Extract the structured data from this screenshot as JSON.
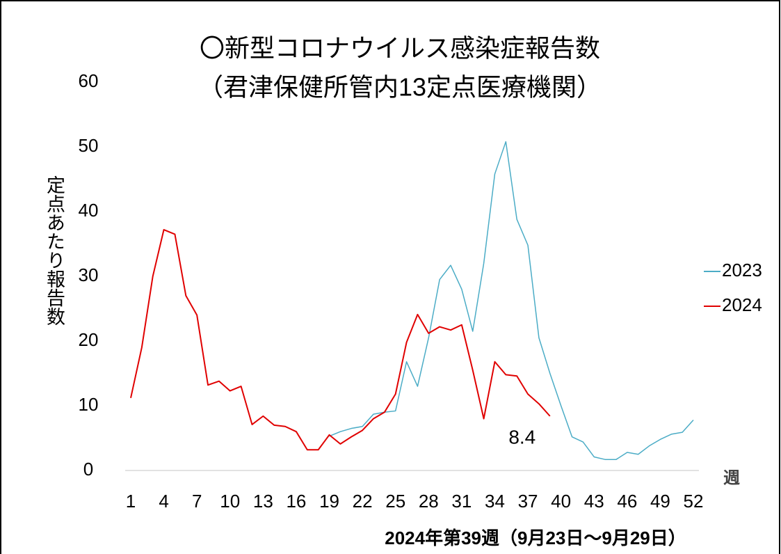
{
  "chart_data": {
    "type": "line",
    "title": "〇新型コロナウイルス感染症報告数",
    "subtitle": "（君津保健所管内13定点医療機関）",
    "ylabel": "定点あたり報告数",
    "xlabel": "週",
    "footer": "2024年第39週（9月23日～9月29日）",
    "x": [
      1,
      2,
      3,
      4,
      5,
      6,
      7,
      8,
      9,
      10,
      11,
      12,
      13,
      14,
      15,
      16,
      17,
      18,
      19,
      20,
      21,
      22,
      23,
      24,
      25,
      26,
      27,
      28,
      29,
      30,
      31,
      32,
      33,
      34,
      35,
      36,
      37,
      38,
      39,
      40,
      41,
      42,
      43,
      44,
      45,
      46,
      47,
      48,
      49,
      50,
      51,
      52
    ],
    "xlim": [
      1,
      52
    ],
    "xticks": [
      1,
      4,
      7,
      10,
      13,
      16,
      19,
      22,
      25,
      28,
      31,
      34,
      37,
      40,
      43,
      46,
      49,
      52
    ],
    "ylim": [
      0,
      60
    ],
    "yticks": [
      0,
      10,
      20,
      30,
      40,
      50,
      60
    ],
    "grid": false,
    "legend": "right",
    "series": [
      {
        "name": "2023",
        "color": "#4bacc6",
        "values": [
          null,
          null,
          null,
          null,
          null,
          null,
          null,
          null,
          null,
          null,
          null,
          null,
          null,
          null,
          null,
          null,
          null,
          null,
          5.3,
          6,
          6.5,
          6.8,
          8.7,
          9,
          9.2,
          16.8,
          13,
          20.5,
          29.5,
          31.7,
          28,
          21.5,
          32,
          45.8,
          50.8,
          38.8,
          34.8,
          20.5,
          15,
          10,
          5.2,
          4.4,
          2.1,
          1.7,
          1.7,
          2.8,
          2.5,
          3.8,
          4.8,
          5.6,
          5.9,
          7.8
        ]
      },
      {
        "name": "2024",
        "color": "#e00000",
        "values": [
          11.2,
          19,
          30,
          37.2,
          36.5,
          27,
          24,
          13.2,
          13.8,
          12.3,
          13,
          7.1,
          8.4,
          7,
          6.8,
          6,
          3.2,
          3.2,
          5.5,
          4.1,
          5.2,
          6.2,
          8,
          9,
          11.8,
          19.8,
          24.1,
          21.2,
          22.2,
          21.7,
          22.5,
          15.5,
          8,
          16.8,
          14.8,
          14.6,
          11.8,
          10.3,
          8.4,
          null,
          null,
          null,
          null,
          null,
          null,
          null,
          null,
          null,
          null,
          null,
          null,
          null
        ]
      }
    ]
  }
}
